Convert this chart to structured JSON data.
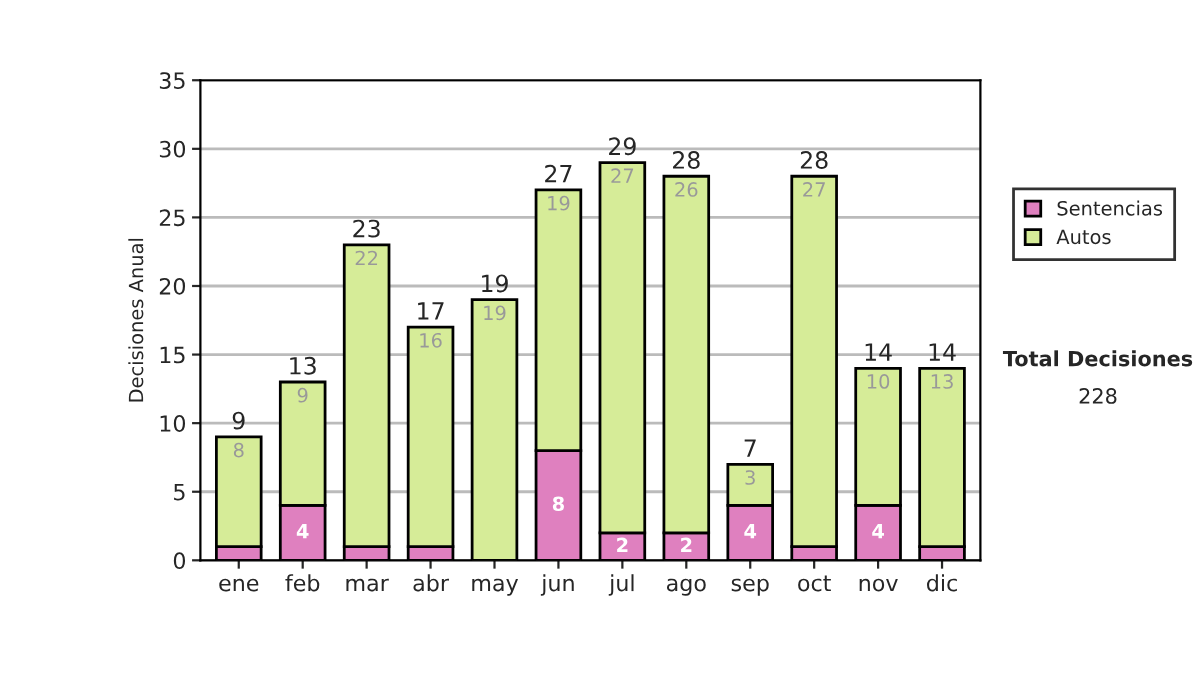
{
  "chart_data": {
    "type": "bar",
    "stacked": true,
    "ylabel": "Decisiones Anual",
    "categories": [
      "ene",
      "feb",
      "mar",
      "abr",
      "may",
      "jun",
      "jul",
      "ago",
      "sep",
      "oct",
      "nov",
      "dic"
    ],
    "series": [
      {
        "name": "Sentencias",
        "color": "#df80bf",
        "values": [
          1,
          4,
          1,
          1,
          0,
          8,
          2,
          2,
          4,
          1,
          4,
          1
        ],
        "value_labels": [
          null,
          "4",
          null,
          null,
          null,
          "8",
          "2",
          "2",
          "4",
          null,
          "4",
          null
        ]
      },
      {
        "name": "Autos",
        "color": "#d6ec98",
        "values": [
          8,
          9,
          22,
          16,
          19,
          19,
          27,
          26,
          3,
          27,
          10,
          13
        ],
        "value_labels": [
          "8",
          "9",
          "22",
          "16",
          "19",
          "19",
          "27",
          "26",
          "3",
          "27",
          "10",
          "13"
        ]
      }
    ],
    "totals": [
      "9",
      "13",
      "23",
      "17",
      "19",
      "27",
      "29",
      "28",
      "7",
      "28",
      "14",
      "14"
    ],
    "ylim": [
      0,
      35
    ],
    "yticks": [
      0,
      5,
      10,
      15,
      20,
      25,
      30,
      35
    ],
    "grid": "y",
    "legend": "right",
    "annotations": [
      "Total Decisiones",
      "228"
    ]
  }
}
